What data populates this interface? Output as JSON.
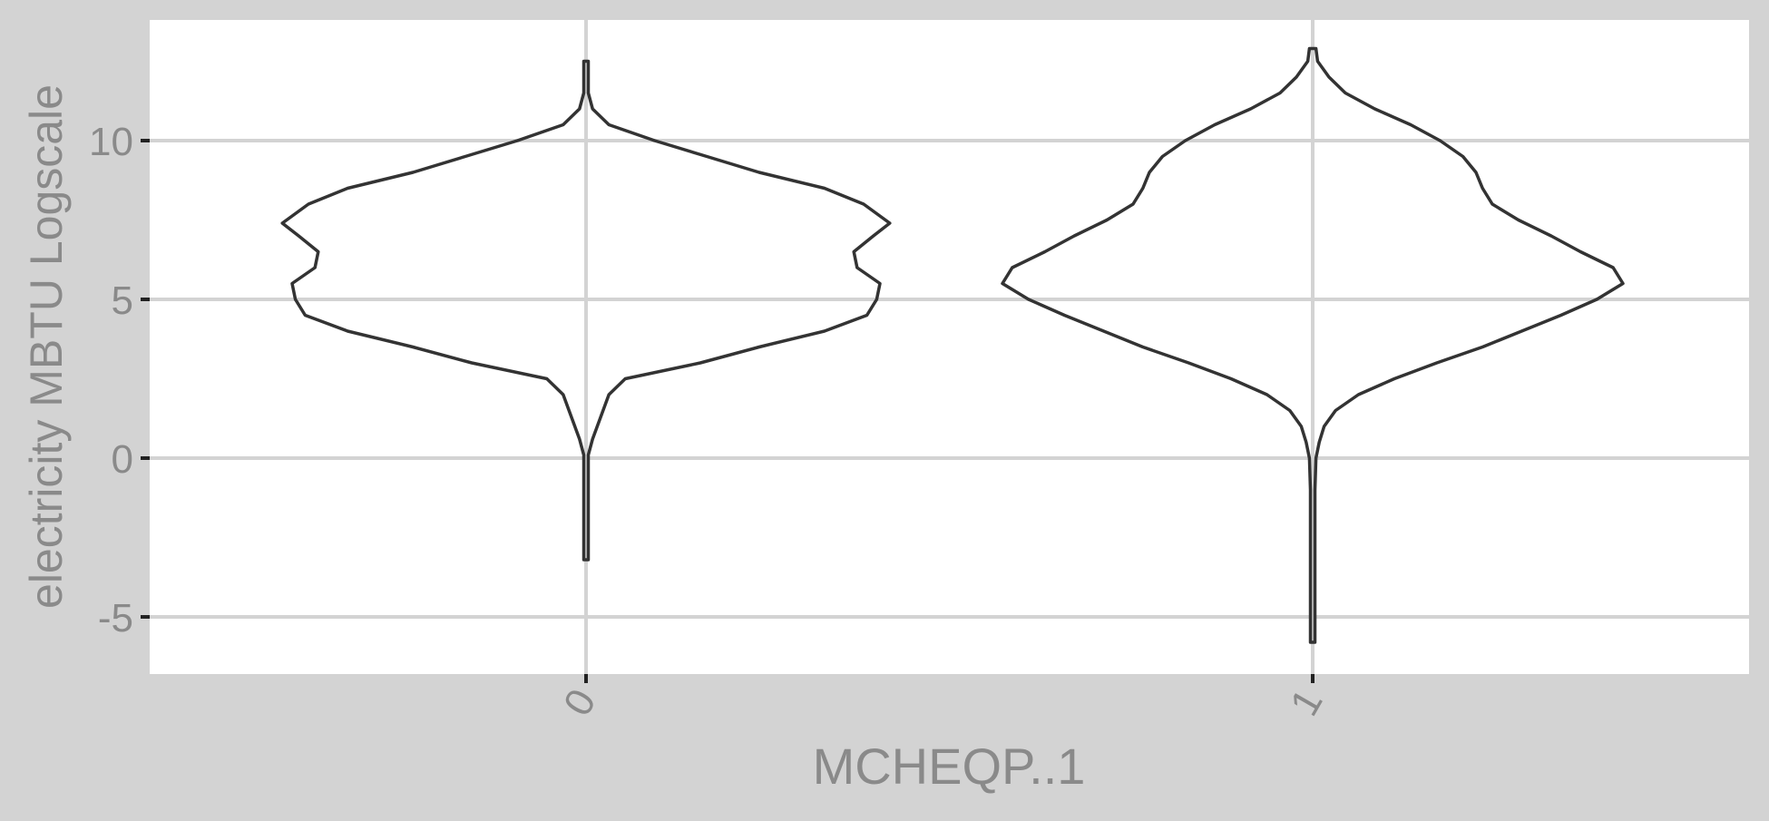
{
  "colors": {
    "background": "#d3d3d3",
    "panel": "#ffffff",
    "grid": "#d3d3d3",
    "violin_stroke": "#333333",
    "tick": "#222222",
    "tick_label": "#8a8a8a",
    "axis_title": "#8a8a8a"
  },
  "chart_data": {
    "type": "violin",
    "title": "",
    "xlabel": "MCHEQP..1",
    "ylabel": "electricity MBTU Logscale",
    "categories": [
      "0",
      "1"
    ],
    "ylim": [
      -6.8,
      13.8
    ],
    "yticks": [
      -5,
      0,
      5,
      10
    ],
    "ytick_labels": [
      "-5",
      "0",
      "5",
      "10"
    ],
    "grid": true,
    "violins": [
      {
        "category": "0",
        "min": -3.2,
        "max": 12.5,
        "profile": [
          [
            -3.2,
            0.004
          ],
          [
            -1.3,
            0.004
          ],
          [
            -0.9,
            0.007
          ],
          [
            -0.5,
            0.006
          ],
          [
            0.1,
            0.007
          ],
          [
            0.6,
            0.02
          ],
          [
            1.3,
            0.045
          ],
          [
            2.0,
            0.07
          ],
          [
            2.5,
            0.12
          ],
          [
            3.0,
            0.35
          ],
          [
            3.5,
            0.53
          ],
          [
            4.0,
            0.73
          ],
          [
            4.5,
            0.86
          ],
          [
            5.0,
            0.89
          ],
          [
            5.5,
            0.9
          ],
          [
            6.0,
            0.83
          ],
          [
            6.5,
            0.82
          ],
          [
            7.0,
            0.88
          ],
          [
            7.4,
            0.93
          ],
          [
            8.0,
            0.85
          ],
          [
            8.5,
            0.73
          ],
          [
            9.0,
            0.53
          ],
          [
            9.5,
            0.37
          ],
          [
            10.0,
            0.21
          ],
          [
            10.5,
            0.07
          ],
          [
            11.0,
            0.02
          ],
          [
            11.5,
            0.007
          ],
          [
            12.0,
            0.003
          ],
          [
            12.5,
            0.001
          ]
        ]
      },
      {
        "category": "1",
        "min": -5.8,
        "max": 12.9,
        "profile": [
          [
            -5.8,
            0.005
          ],
          [
            -3.0,
            0.005
          ],
          [
            -1.0,
            0.006
          ],
          [
            0.0,
            0.01
          ],
          [
            0.5,
            0.02
          ],
          [
            1.0,
            0.035
          ],
          [
            1.5,
            0.07
          ],
          [
            2.0,
            0.14
          ],
          [
            2.5,
            0.25
          ],
          [
            3.0,
            0.38
          ],
          [
            3.5,
            0.52
          ],
          [
            4.0,
            0.64
          ],
          [
            4.5,
            0.76
          ],
          [
            5.0,
            0.87
          ],
          [
            5.5,
            0.95
          ],
          [
            6.0,
            0.92
          ],
          [
            6.5,
            0.82
          ],
          [
            7.0,
            0.73
          ],
          [
            7.5,
            0.63
          ],
          [
            8.0,
            0.55
          ],
          [
            8.5,
            0.52
          ],
          [
            9.0,
            0.5
          ],
          [
            9.5,
            0.46
          ],
          [
            10.0,
            0.39
          ],
          [
            10.5,
            0.3
          ],
          [
            11.0,
            0.19
          ],
          [
            11.5,
            0.1
          ],
          [
            12.0,
            0.05
          ],
          [
            12.5,
            0.015
          ],
          [
            12.9,
            0.01
          ]
        ]
      }
    ]
  }
}
